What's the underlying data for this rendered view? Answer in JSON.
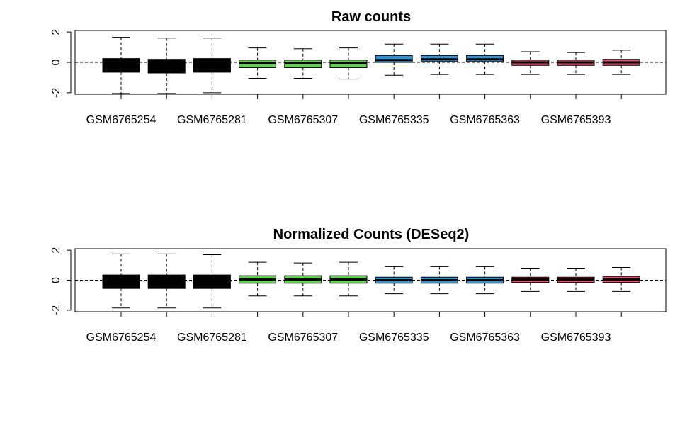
{
  "chart_data": [
    {
      "type": "boxplot",
      "title": "Raw counts",
      "ylim": [
        -2.1,
        2.1
      ],
      "yticks": [
        -2,
        0,
        2
      ],
      "ytick_labels": [
        "-2",
        "0",
        "2"
      ],
      "reference_line": 0,
      "x_tick_labels_shown": [
        "GSM6765254",
        "GSM6765281",
        "GSM6765307",
        "GSM6765335",
        "GSM6765363",
        "GSM6765393"
      ],
      "boxes": [
        {
          "color": "#000000",
          "whisker_low": -2.05,
          "q1": -0.65,
          "median": -0.1,
          "q3": 0.25,
          "whisker_high": 1.65
        },
        {
          "color": "#000000",
          "whisker_low": -2.05,
          "q1": -0.7,
          "median": -0.15,
          "q3": 0.2,
          "whisker_high": 1.6
        },
        {
          "color": "#000000",
          "whisker_low": -2.0,
          "q1": -0.65,
          "median": -0.15,
          "q3": 0.25,
          "whisker_high": 1.6
        },
        {
          "color": "#61D04F",
          "whisker_low": -1.05,
          "q1": -0.35,
          "median": -0.05,
          "q3": 0.15,
          "whisker_high": 0.95
        },
        {
          "color": "#61D04F",
          "whisker_low": -1.05,
          "q1": -0.35,
          "median": -0.05,
          "q3": 0.15,
          "whisker_high": 0.9
        },
        {
          "color": "#61D04F",
          "whisker_low": -1.1,
          "q1": -0.35,
          "median": -0.05,
          "q3": 0.15,
          "whisker_high": 0.95
        },
        {
          "color": "#2297E6",
          "whisker_low": -0.85,
          "q1": 0.0,
          "median": 0.15,
          "q3": 0.45,
          "whisker_high": 1.2
        },
        {
          "color": "#2297E6",
          "whisker_low": -0.8,
          "q1": 0.05,
          "median": 0.2,
          "q3": 0.45,
          "whisker_high": 1.2
        },
        {
          "color": "#2297E6",
          "whisker_low": -0.8,
          "q1": 0.05,
          "median": 0.2,
          "q3": 0.45,
          "whisker_high": 1.2
        },
        {
          "color": "#DF536B",
          "whisker_low": -0.8,
          "q1": -0.2,
          "median": 0.0,
          "q3": 0.15,
          "whisker_high": 0.7
        },
        {
          "color": "#DF536B",
          "whisker_low": -0.8,
          "q1": -0.2,
          "median": 0.0,
          "q3": 0.15,
          "whisker_high": 0.65
        },
        {
          "color": "#DF536B",
          "whisker_low": -0.8,
          "q1": -0.2,
          "median": 0.0,
          "q3": 0.2,
          "whisker_high": 0.8
        }
      ]
    },
    {
      "type": "boxplot",
      "title": "Normalized Counts (DESeq2)",
      "ylim": [
        -2.1,
        2.1
      ],
      "yticks": [
        -2,
        0,
        2
      ],
      "ytick_labels": [
        "-2",
        "0",
        "2"
      ],
      "reference_line": 0,
      "x_tick_labels_shown": [
        "GSM6765254",
        "GSM6765281",
        "GSM6765307",
        "GSM6765335",
        "GSM6765363",
        "GSM6765393"
      ],
      "boxes": [
        {
          "color": "#000000",
          "whisker_low": -1.85,
          "q1": -0.55,
          "median": 0.0,
          "q3": 0.35,
          "whisker_high": 1.75
        },
        {
          "color": "#000000",
          "whisker_low": -1.85,
          "q1": -0.55,
          "median": 0.0,
          "q3": 0.35,
          "whisker_high": 1.75
        },
        {
          "color": "#000000",
          "whisker_low": -1.85,
          "q1": -0.55,
          "median": 0.0,
          "q3": 0.35,
          "whisker_high": 1.7
        },
        {
          "color": "#61D04F",
          "whisker_low": -1.05,
          "q1": -0.2,
          "median": 0.05,
          "q3": 0.3,
          "whisker_high": 1.2
        },
        {
          "color": "#61D04F",
          "whisker_low": -1.05,
          "q1": -0.2,
          "median": 0.05,
          "q3": 0.3,
          "whisker_high": 1.15
        },
        {
          "color": "#61D04F",
          "whisker_low": -1.05,
          "q1": -0.2,
          "median": 0.05,
          "q3": 0.3,
          "whisker_high": 1.2
        },
        {
          "color": "#2297E6",
          "whisker_low": -0.9,
          "q1": -0.2,
          "median": 0.0,
          "q3": 0.2,
          "whisker_high": 0.9
        },
        {
          "color": "#2297E6",
          "whisker_low": -0.9,
          "q1": -0.2,
          "median": 0.0,
          "q3": 0.2,
          "whisker_high": 0.9
        },
        {
          "color": "#2297E6",
          "whisker_low": -0.9,
          "q1": -0.2,
          "median": 0.0,
          "q3": 0.2,
          "whisker_high": 0.9
        },
        {
          "color": "#DF536B",
          "whisker_low": -0.75,
          "q1": -0.15,
          "median": 0.05,
          "q3": 0.2,
          "whisker_high": 0.8
        },
        {
          "color": "#DF536B",
          "whisker_low": -0.75,
          "q1": -0.15,
          "median": 0.05,
          "q3": 0.2,
          "whisker_high": 0.8
        },
        {
          "color": "#DF536B",
          "whisker_low": -0.75,
          "q1": -0.15,
          "median": 0.05,
          "q3": 0.25,
          "whisker_high": 0.85
        }
      ]
    }
  ]
}
